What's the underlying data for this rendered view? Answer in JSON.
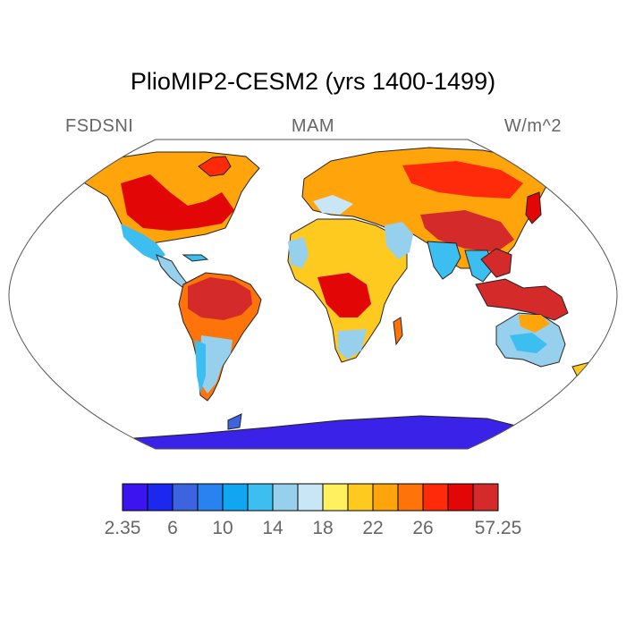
{
  "title": "PlioMIP2-CESM2 (yrs 1400-1499)",
  "variable": "FSDSNI",
  "season": "MAM",
  "units": "W/m^2",
  "colors": {
    "ocean": "#ffffff",
    "border": "#222222",
    "antarctica": "#3a22e8"
  },
  "colorbar": {
    "colors": [
      "#3c14f0",
      "#1c28ee",
      "#3c64e0",
      "#2882f0",
      "#10a6f2",
      "#3cbef0",
      "#96d0ec",
      "#c8e6f6",
      "#fff060",
      "#ffca20",
      "#ffa40a",
      "#ff740a",
      "#ff2a0a",
      "#e20606",
      "#d42a2a"
    ],
    "labels": [
      "2.35",
      "6",
      "10",
      "14",
      "18",
      "22",
      "26",
      "57.25"
    ]
  }
}
